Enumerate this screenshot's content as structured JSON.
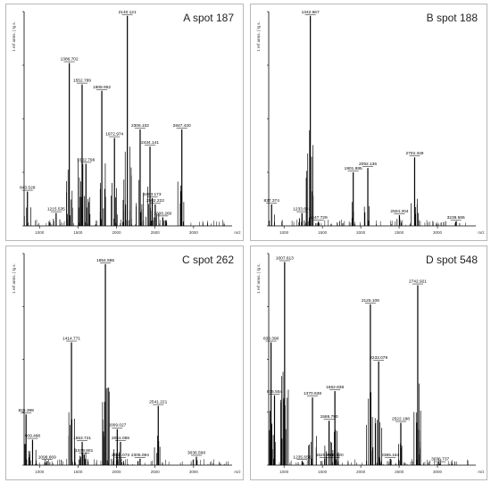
{
  "chart_data": [
    {
      "type": "bar",
      "title": "A  spot 187",
      "ylabel": "1 ref arms.  | lg s.",
      "xlabel": "m/z",
      "xlim": [
        800,
        3500
      ],
      "ylim": [
        0,
        100
      ],
      "x_ticks": [
        "1000",
        "1500",
        "2000",
        "2500",
        "3000"
      ],
      "peaks": [
        {
          "mz": 843.529,
          "value": 16,
          "label": "843.529"
        },
        {
          "mz": 1215.535,
          "value": 6,
          "label": "1215.535"
        },
        {
          "mz": 1386.702,
          "value": 76,
          "label": "1386.702"
        },
        {
          "mz": 1552.789,
          "value": 66,
          "label": "1552.789"
        },
        {
          "mz": 1602.796,
          "value": 29,
          "label": "1602.796"
        },
        {
          "mz": 1808.952,
          "value": 63,
          "label": "1808.952"
        },
        {
          "mz": 1972.974,
          "value": 41,
          "label": "1972.974"
        },
        {
          "mz": 2140.121,
          "value": 98,
          "label": "2140.121"
        },
        {
          "mz": 2306.102,
          "value": 45,
          "label": "2306.102"
        },
        {
          "mz": 2434.141,
          "value": 37,
          "label": "2434.141"
        },
        {
          "mz": 2463.173,
          "value": 13,
          "label": "2463.173"
        },
        {
          "mz": 2502.222,
          "value": 10,
          "label": "2502.222"
        },
        {
          "mz": 2600.26,
          "value": 4,
          "label": "2600.260"
        },
        {
          "mz": 2847.42,
          "value": 45,
          "label": "2847.420"
        }
      ]
    },
    {
      "type": "bar",
      "title": "B  spot 188",
      "ylabel": "1 ref arms.  | lg s.",
      "xlabel": "m/z",
      "xlim": [
        800,
        3500
      ],
      "ylim": [
        0,
        100
      ],
      "x_ticks": [
        "1000",
        "1500",
        "2000",
        "2500",
        "3000"
      ],
      "peaks": [
        {
          "mz": 837.374,
          "value": 10,
          "label": "837.374"
        },
        {
          "mz": 1233.643,
          "value": 6,
          "label": "1233.643"
        },
        {
          "mz": 1342.667,
          "value": 98,
          "label": "1342.667"
        },
        {
          "mz": 1447.729,
          "value": 2,
          "label": "1447.729"
        },
        {
          "mz": 1901.885,
          "value": 25,
          "label": "1901.885"
        },
        {
          "mz": 2092.136,
          "value": 27,
          "label": "2092.136"
        },
        {
          "mz": 2504.304,
          "value": 5,
          "label": "2504.304"
        },
        {
          "mz": 2702.349,
          "value": 32,
          "label": "2702.349"
        },
        {
          "mz": 3239.586,
          "value": 2,
          "label": "3239.586"
        }
      ]
    },
    {
      "type": "bar",
      "title": "C  spot 262",
      "ylabel": "1 ref arms.  | lg s.",
      "xlabel": "m/z",
      "xlim": [
        800,
        3500
      ],
      "ylim": [
        0,
        100
      ],
      "x_ticks": [
        "1000",
        "1500",
        "2000",
        "2500",
        "3000"
      ],
      "peaks": [
        {
          "mz": 825.399,
          "value": 24,
          "label": "825.399"
        },
        {
          "mz": 909.498,
          "value": 12,
          "label": "909.498"
        },
        {
          "mz": 1098.669,
          "value": 2,
          "label": "1098.669"
        },
        {
          "mz": 1414.771,
          "value": 58,
          "label": "1414.771"
        },
        {
          "mz": 1553.721,
          "value": 11,
          "label": "1553.721"
        },
        {
          "mz": 1579.861,
          "value": 5,
          "label": "1579.861"
        },
        {
          "mz": 1854.965,
          "value": 95,
          "label": "1854.965"
        },
        {
          "mz": 2009.027,
          "value": 17,
          "label": "2009.027"
        },
        {
          "mz": 2051.059,
          "value": 11,
          "label": "2051.059"
        },
        {
          "mz": 2052.073,
          "value": 3,
          "label": "2052.073"
        },
        {
          "mz": 2305.084,
          "value": 3,
          "label": "2305.084"
        },
        {
          "mz": 2541.221,
          "value": 28,
          "label": "2541.221"
        },
        {
          "mz": 3036.568,
          "value": 4,
          "label": "3036.568"
        }
      ]
    },
    {
      "type": "bar",
      "title": "D  spot 548",
      "ylabel": "1 ref arms.  | lg s.",
      "xlabel": "m/z",
      "xlim": [
        800,
        3500
      ],
      "ylim": [
        0,
        100
      ],
      "x_ticks": [
        "1000",
        "1500",
        "2000",
        "2500",
        "3000"
      ],
      "peaks": [
        {
          "mz": 830.39,
          "value": 58,
          "label": "830.390"
        },
        {
          "mz": 875.554,
          "value": 33,
          "label": "875.554"
        },
        {
          "mz": 1007.613,
          "value": 96,
          "label": "1007.613"
        },
        {
          "mz": 1235.65,
          "value": 2,
          "label": "1235.650"
        },
        {
          "mz": 1370.638,
          "value": 32,
          "label": "1370.638"
        },
        {
          "mz": 1529.761,
          "value": 3,
          "label": "1529.761"
        },
        {
          "mz": 1586.79,
          "value": 21,
          "label": "1586.790"
        },
        {
          "mz": 1656.82,
          "value": 3,
          "label": "1656.820"
        },
        {
          "mz": 1662.838,
          "value": 35,
          "label": "1662.838"
        },
        {
          "mz": 2125.109,
          "value": 76,
          "label": "2125.109"
        },
        {
          "mz": 2233.079,
          "value": 49,
          "label": "2233.079"
        },
        {
          "mz": 2385.164,
          "value": 3,
          "label": "2385.164"
        },
        {
          "mz": 2522.188,
          "value": 20,
          "label": "2522.188"
        },
        {
          "mz": 2742.921,
          "value": 85,
          "label": "2742.921"
        },
        {
          "mz": 3036.737,
          "value": 1,
          "label": "3036.737"
        }
      ]
    }
  ]
}
